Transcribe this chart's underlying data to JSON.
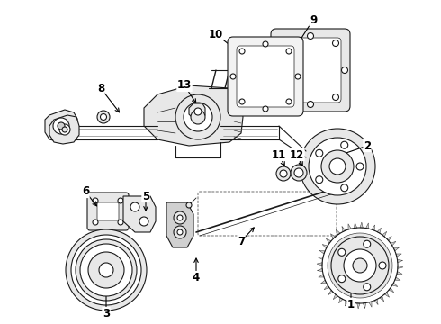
{
  "bg_color": "#ffffff",
  "line_color": "#1a1a1a",
  "figsize": [
    4.9,
    3.6
  ],
  "dpi": 100,
  "labels_arrows": [
    [
      "1",
      390,
      338,
      390,
      312
    ],
    [
      "2",
      408,
      162,
      370,
      175
    ],
    [
      "3",
      118,
      348,
      118,
      315
    ],
    [
      "4",
      218,
      308,
      218,
      283
    ],
    [
      "5",
      162,
      218,
      162,
      238
    ],
    [
      "6",
      95,
      213,
      110,
      232
    ],
    [
      "7",
      268,
      268,
      285,
      250
    ],
    [
      "8",
      112,
      98,
      135,
      128
    ],
    [
      "9",
      348,
      22,
      330,
      50
    ],
    [
      "10",
      240,
      38,
      268,
      60
    ],
    [
      "11",
      310,
      172,
      318,
      188
    ],
    [
      "12",
      330,
      172,
      338,
      188
    ],
    [
      "13",
      205,
      95,
      220,
      118
    ]
  ]
}
